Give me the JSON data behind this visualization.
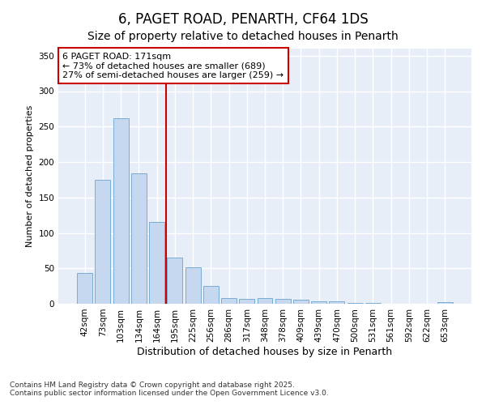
{
  "title1": "6, PAGET ROAD, PENARTH, CF64 1DS",
  "title2": "Size of property relative to detached houses in Penarth",
  "xlabel": "Distribution of detached houses by size in Penarth",
  "ylabel": "Number of detached properties",
  "categories": [
    "42sqm",
    "73sqm",
    "103sqm",
    "134sqm",
    "164sqm",
    "195sqm",
    "225sqm",
    "256sqm",
    "286sqm",
    "317sqm",
    "348sqm",
    "378sqm",
    "409sqm",
    "439sqm",
    "470sqm",
    "500sqm",
    "531sqm",
    "561sqm",
    "592sqm",
    "622sqm",
    "653sqm"
  ],
  "values": [
    44,
    175,
    262,
    184,
    115,
    65,
    52,
    25,
    8,
    7,
    8,
    7,
    6,
    4,
    3,
    1,
    1,
    0,
    0,
    0,
    2
  ],
  "bar_color": "#c5d8f0",
  "bar_edge_color": "#7aadd4",
  "vline_index": 4,
  "vline_color": "#cc0000",
  "annotation_text": "6 PAGET ROAD: 171sqm\n← 73% of detached houses are smaller (689)\n27% of semi-detached houses are larger (259) →",
  "annotation_box_color": "white",
  "annotation_box_edge_color": "#cc0000",
  "ylim": [
    0,
    360
  ],
  "yticks": [
    0,
    50,
    100,
    150,
    200,
    250,
    300,
    350
  ],
  "bg_color": "#e8eef8",
  "grid_color": "#ffffff",
  "footer": "Contains HM Land Registry data © Crown copyright and database right 2025.\nContains public sector information licensed under the Open Government Licence v3.0.",
  "title1_fontsize": 12,
  "title2_fontsize": 10,
  "xlabel_fontsize": 9,
  "ylabel_fontsize": 8,
  "tick_fontsize": 7.5,
  "annotation_fontsize": 8,
  "footer_fontsize": 6.5
}
